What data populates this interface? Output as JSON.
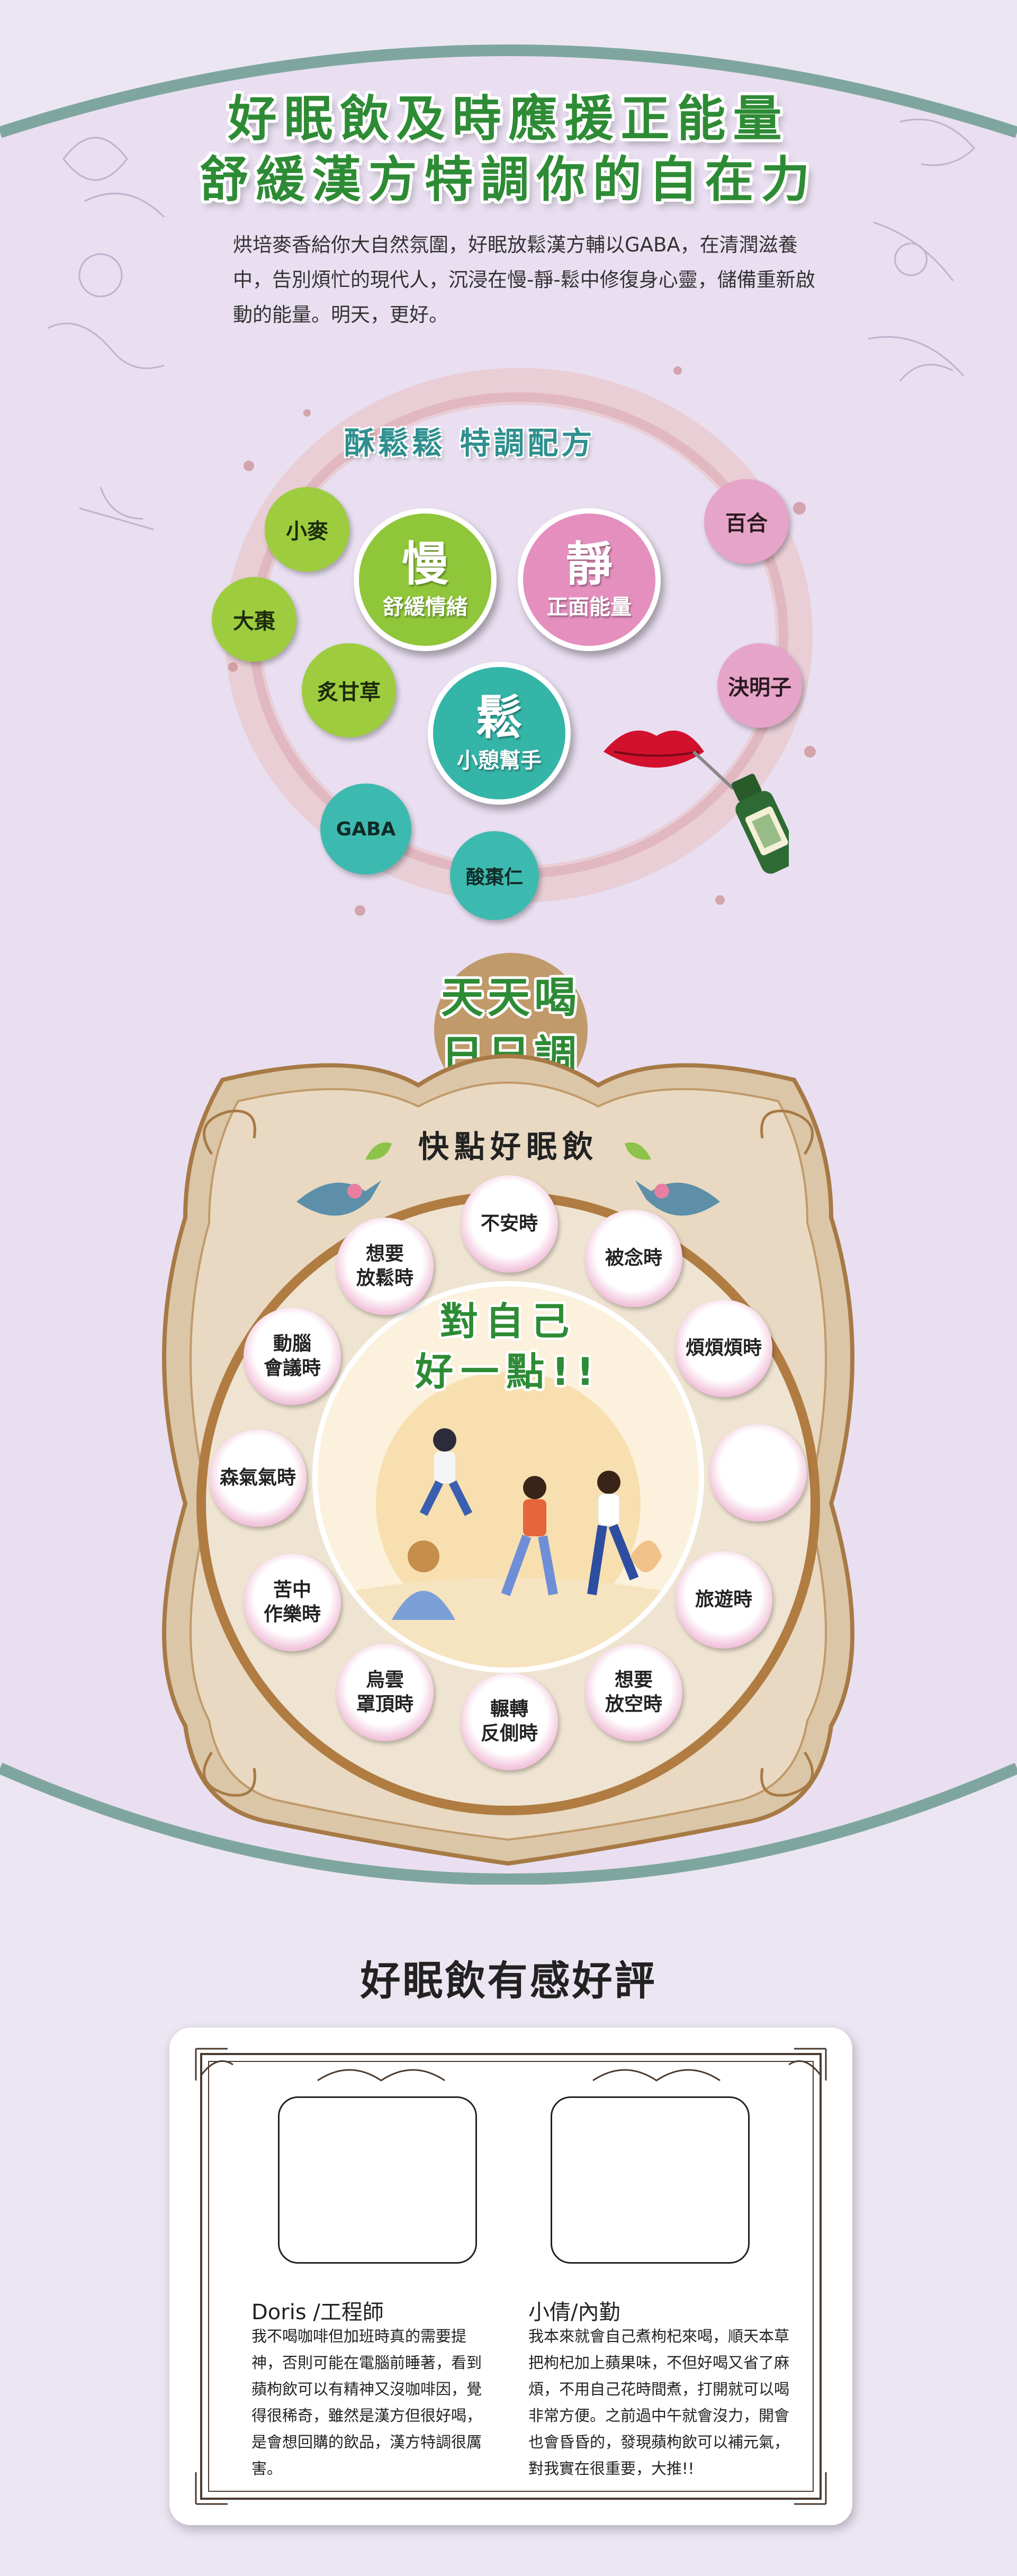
{
  "hero": {
    "headline_1": "好眠飲及時應援正能量",
    "headline_2": "舒緩漢方特調你的自在力",
    "intro": "烘培麥香給你大自然氛圍，好眠放鬆漢方輔以GABA，在清潤滋養中，告別煩忙的現代人，沉浸在慢-靜-鬆中修復身心靈，儲備重新啟動的能量。明天，更好。"
  },
  "formula": {
    "title": "酥鬆鬆  特調配方",
    "ingredients": {
      "wheat": "小麥",
      "jujube": "大棗",
      "licorice": "炙甘草",
      "gaba": "GABA",
      "ziziphus": "酸棗仁",
      "lily": "百合",
      "cassia": "決明子"
    },
    "pillars": {
      "slow": {
        "char": "慢",
        "sub": "舒緩情緒"
      },
      "calm": {
        "char": "靜",
        "sub": "正面能量"
      },
      "relax": {
        "char": "鬆",
        "sub": "小憩幫手"
      }
    }
  },
  "daily": {
    "line_1": "天天喝",
    "line_2": "日日調"
  },
  "moods": {
    "title": "快點好眠飲",
    "center_1": "對自己",
    "center_2": "好一點!!",
    "items": {
      "anxious": "不安時",
      "missing": "被念時",
      "irritated": "煩煩煩時",
      "travel": "旅遊時",
      "blank": "想要\n放空時",
      "tossing": "輾轉\n反側時",
      "cloudy": "烏雲\n罩頂時",
      "hardship": "苦中\n作樂時",
      "gloomy": "森氣氣時",
      "meeting": "動腦\n會議時",
      "relax": "想要\n放鬆時"
    }
  },
  "reviews": {
    "title": "好眠飲有感好評",
    "left": {
      "name": "Doris /工程師",
      "text": "我不喝咖啡但加班時真的需要提神，否則可能在電腦前睡著，看到蘋枸飲可以有精神又沒咖啡因，覺得很稀奇，雖然是漢方但很好喝，是會想回購的飲品，漢方特調很厲害。"
    },
    "right": {
      "name": "小倩/內勤",
      "text": "我本來就會自己煮枸杞來喝，順天本草把枸杞加上蘋果味，不但好喝又省了麻煩，不用自己花時間煮，打開就可以喝非常方便。之前過中午就會沒力，開會也會昏昏的，發現蘋枸飲可以補元氣，對我實在很重要，大推!!"
    }
  },
  "colors": {
    "bg": "#ece6f3",
    "frame": "#7fa69e",
    "green": "#2e8b35",
    "pink": "#e6a4c8",
    "teal": "#3dbab0",
    "lime": "#9dcd3e",
    "tan": "#d8c0a0",
    "brown": "#a77a45"
  }
}
